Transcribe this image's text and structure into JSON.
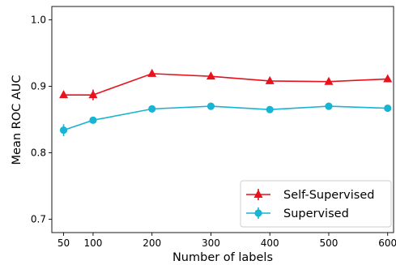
{
  "chart_data": {
    "type": "line",
    "title": "",
    "xlabel": "Number of labels",
    "ylabel": "Mean ROC AUC",
    "x": [
      50,
      100,
      200,
      300,
      400,
      500,
      600
    ],
    "xlim": [
      30,
      610
    ],
    "ylim": [
      0.68,
      1.02
    ],
    "xticks": [
      50,
      100,
      200,
      300,
      400,
      500,
      600
    ],
    "yticks": [
      0.7,
      0.8,
      0.9,
      1.0
    ],
    "ytick_labels": [
      "0.7",
      "0.8",
      "0.9",
      "1.0"
    ],
    "grid": false,
    "legend_position": "lower-right",
    "series": [
      {
        "name": "Self-Supervised",
        "color": "#e8111c",
        "marker": "triangle-up",
        "values": [
          0.887,
          0.887,
          0.919,
          0.915,
          0.908,
          0.907,
          0.911
        ],
        "errors": [
          0.003,
          0.008,
          0.003,
          0.004,
          0.002,
          0.002,
          0.003
        ]
      },
      {
        "name": "Supervised",
        "color": "#18b4d4",
        "marker": "circle",
        "values": [
          0.834,
          0.849,
          0.866,
          0.87,
          0.865,
          0.87,
          0.867
        ],
        "errors": [
          0.009,
          0.003,
          0.005,
          0.003,
          0.003,
          0.003,
          0.003
        ]
      }
    ]
  }
}
